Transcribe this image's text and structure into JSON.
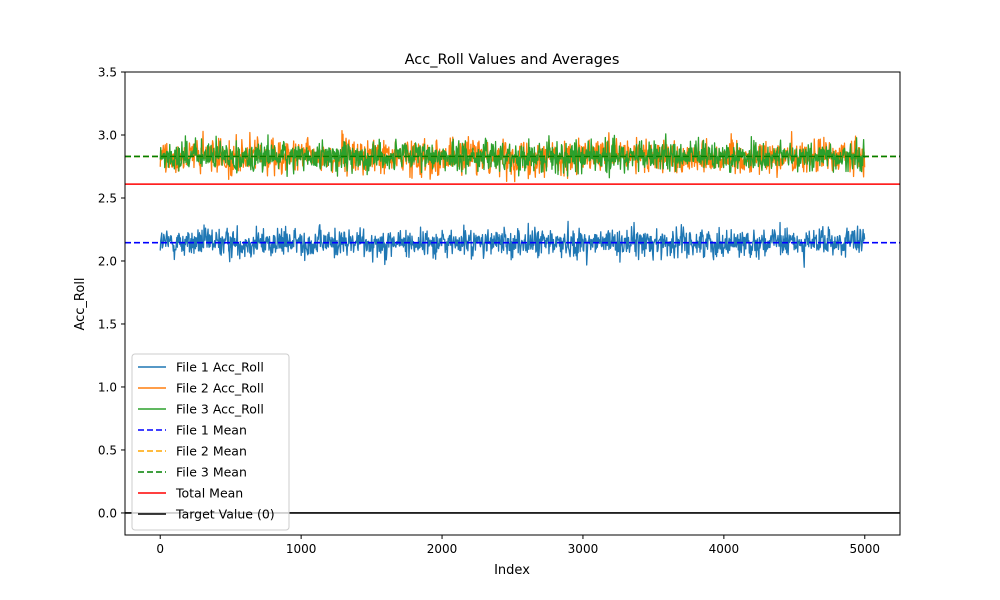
{
  "chart_data": {
    "type": "line",
    "title": "Acc_Roll Values and Averages",
    "xlabel": "Index",
    "ylabel": "Acc_Roll",
    "xlim": [
      -250,
      5250
    ],
    "ylim": [
      -0.175,
      3.5
    ],
    "xticks": [
      0,
      1000,
      2000,
      3000,
      4000,
      5000
    ],
    "yticks": [
      0.0,
      0.5,
      1.0,
      1.5,
      2.0,
      2.5,
      3.0,
      3.5
    ],
    "xtick_labels": [
      "0",
      "1000",
      "2000",
      "3000",
      "4000",
      "5000"
    ],
    "ytick_labels": [
      "0.0",
      "0.5",
      "1.0",
      "1.5",
      "2.0",
      "2.5",
      "3.0",
      "3.5"
    ],
    "grid": false,
    "legend_position": "lower-left",
    "x_range": [
      0,
      4999
    ],
    "series": [
      {
        "name": "File 1 Acc_Roll",
        "color": "#1f77b4",
        "style": "solid",
        "kind": "noisy",
        "mean": 2.145,
        "spread": 0.105,
        "min": 1.72,
        "max": 2.52
      },
      {
        "name": "File 2 Acc_Roll",
        "color": "#ff7f0e",
        "style": "solid",
        "kind": "noisy",
        "mean": 2.83,
        "spread": 0.125,
        "min": 2.45,
        "max": 3.34
      },
      {
        "name": "File 3 Acc_Roll",
        "color": "#2ca02c",
        "style": "solid",
        "kind": "noisy",
        "mean": 2.83,
        "spread": 0.11,
        "min": 2.43,
        "max": 3.24
      },
      {
        "name": "File 1 Mean",
        "color": "#0000ff",
        "style": "dashed",
        "kind": "hline",
        "value": 2.145
      },
      {
        "name": "File 2 Mean",
        "color": "#ffa500",
        "style": "dashed",
        "kind": "hline",
        "value": 2.83
      },
      {
        "name": "File 3 Mean",
        "color": "#008000",
        "style": "dashed",
        "kind": "hline",
        "value": 2.83
      },
      {
        "name": "Total Mean",
        "color": "#ff0000",
        "style": "solid",
        "kind": "hline",
        "value": 2.61
      },
      {
        "name": "Target Value (0)",
        "color": "#000000",
        "style": "solid",
        "kind": "hline",
        "value": 0.0
      }
    ]
  }
}
